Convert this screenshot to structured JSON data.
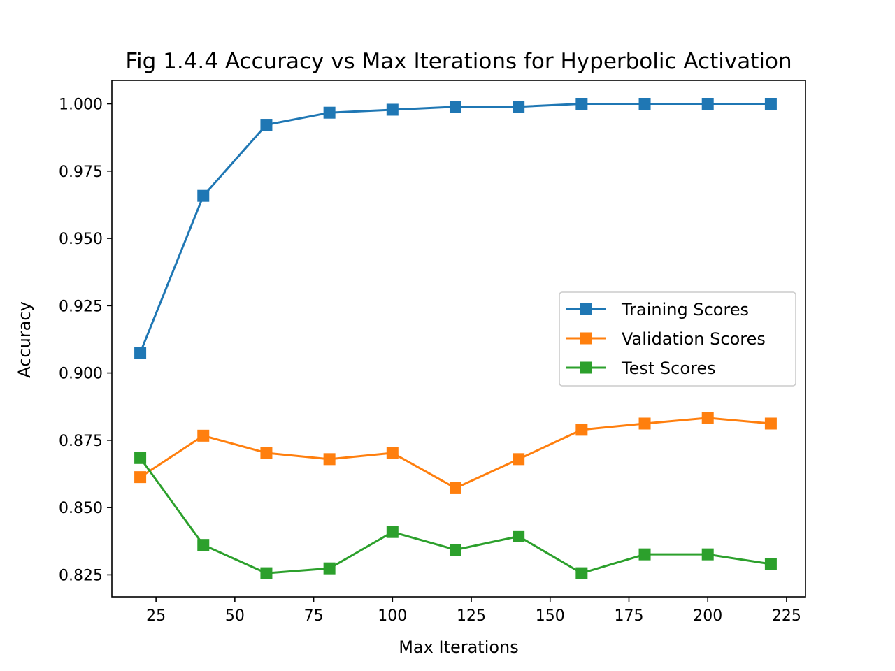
{
  "chart_data": {
    "type": "line",
    "title": "Fig 1.4.4 Accuracy vs Max Iterations for Hyperbolic Activation",
    "xlabel": "Max Iterations",
    "ylabel": "Accuracy",
    "xlim": [
      11,
      231
    ],
    "ylim": [
      0.8168,
      1.0087
    ],
    "x": [
      20,
      40,
      60,
      80,
      100,
      120,
      140,
      160,
      180,
      200,
      220
    ],
    "xticks": [
      25,
      50,
      75,
      100,
      125,
      150,
      175,
      200,
      225
    ],
    "yticks": [
      0.825,
      0.85,
      0.875,
      0.9,
      0.925,
      0.95,
      0.975,
      1.0
    ],
    "xtick_labels": [
      "25",
      "50",
      "75",
      "100",
      "125",
      "150",
      "175",
      "200",
      "225"
    ],
    "ytick_labels": [
      "0.825",
      "0.850",
      "0.875",
      "0.900",
      "0.925",
      "0.950",
      "0.975",
      "1.000"
    ],
    "grid": false,
    "legend_position": "center-right",
    "marker": "square",
    "series": [
      {
        "name": "Training Scores",
        "color": "#1f77b4",
        "values": [
          0.9075,
          0.9658,
          0.9922,
          0.9967,
          0.9978,
          0.9989,
          0.9989,
          1.0,
          1.0,
          1.0,
          1.0
        ]
      },
      {
        "name": "Validation Scores",
        "color": "#ff7f0e",
        "values": [
          0.8613,
          0.8767,
          0.8703,
          0.868,
          0.8703,
          0.8572,
          0.868,
          0.8789,
          0.8812,
          0.8833,
          0.8812
        ]
      },
      {
        "name": "Test Scores",
        "color": "#2ca02c",
        "values": [
          0.8684,
          0.8361,
          0.8256,
          0.8274,
          0.8409,
          0.8343,
          0.8393,
          0.8256,
          0.8326,
          0.8326,
          0.829
        ]
      }
    ]
  }
}
